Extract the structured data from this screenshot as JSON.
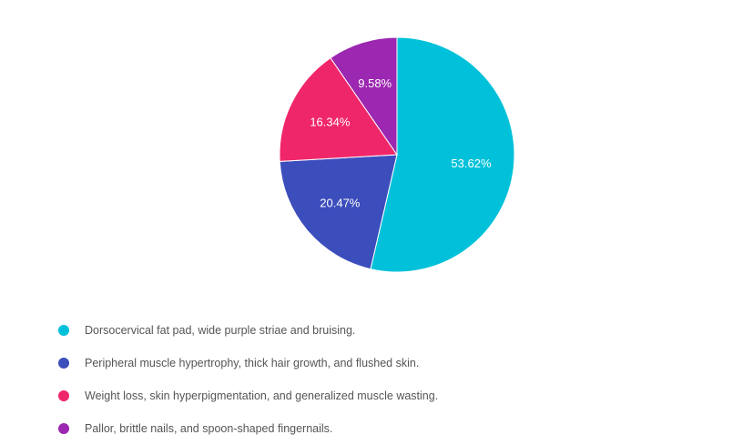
{
  "chart_data": {
    "type": "pie",
    "title": "",
    "unit": "%",
    "legend_position": "bottom-left",
    "slices": [
      {
        "name": "Dorsocervical fat pad, wide purple striae and bruising.",
        "value": 53.62,
        "label": "53.62%",
        "color": "#00C1D9"
      },
      {
        "name": "Peripheral muscle hypertrophy, thick hair growth, and flushed skin.",
        "value": 20.47,
        "label": "20.47%",
        "color": "#3C4DBC"
      },
      {
        "name": "Weight loss, skin hyperpigmentation, and generalized muscle wasting.",
        "value": 16.34,
        "label": "16.34%",
        "color": "#F0266A"
      },
      {
        "name": "Pallor, brittle nails, and spoon-shaped fingernails.",
        "value": 9.58,
        "label": "9.58%",
        "color": "#9C27B0"
      }
    ]
  }
}
